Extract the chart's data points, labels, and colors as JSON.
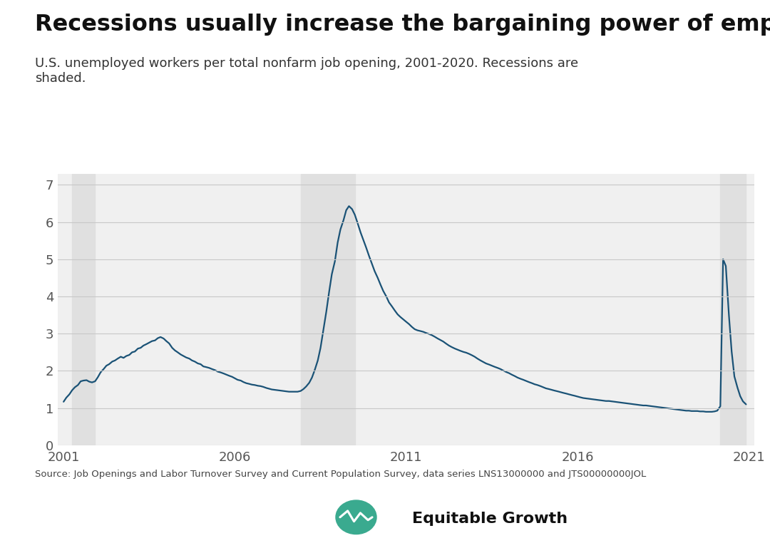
{
  "title": "Recessions usually increase the bargaining power of employers",
  "subtitle": "U.S. unemployed workers per total nonfarm job opening, 2001-2020. Recessions are\nshaded.",
  "source_text": "Source: Job Openings and Labor Turnover Survey and Current Population Survey, data series LNS13000000 and JTS00000000JOL",
  "background_color": "#ffffff",
  "plot_bg_color": "#f0f0f0",
  "line_color": "#1a5276",
  "recession_color": "#e0e0e0",
  "recessions": [
    {
      "start": 2001.25,
      "end": 2001.92
    },
    {
      "start": 2007.92,
      "end": 2009.5
    },
    {
      "start": 2020.17,
      "end": 2020.92
    }
  ],
  "yticks": [
    0,
    1,
    2,
    3,
    4,
    5,
    6,
    7
  ],
  "xticks": [
    2001,
    2006,
    2011,
    2016,
    2021
  ],
  "ylim": [
    0,
    7.3
  ],
  "xlim": [
    2000.83,
    2021.17
  ],
  "title_fontsize": 23,
  "subtitle_fontsize": 13,
  "tick_fontsize": 13,
  "data": {
    "dates": [
      2001.0,
      2001.08,
      2001.17,
      2001.25,
      2001.33,
      2001.42,
      2001.5,
      2001.58,
      2001.67,
      2001.75,
      2001.83,
      2001.92,
      2002.0,
      2002.08,
      2002.17,
      2002.25,
      2002.33,
      2002.42,
      2002.5,
      2002.58,
      2002.67,
      2002.75,
      2002.83,
      2002.92,
      2003.0,
      2003.08,
      2003.17,
      2003.25,
      2003.33,
      2003.42,
      2003.5,
      2003.58,
      2003.67,
      2003.75,
      2003.83,
      2003.92,
      2004.0,
      2004.08,
      2004.17,
      2004.25,
      2004.33,
      2004.42,
      2004.5,
      2004.58,
      2004.67,
      2004.75,
      2004.83,
      2004.92,
      2005.0,
      2005.08,
      2005.17,
      2005.25,
      2005.33,
      2005.42,
      2005.5,
      2005.58,
      2005.67,
      2005.75,
      2005.83,
      2005.92,
      2006.0,
      2006.08,
      2006.17,
      2006.25,
      2006.33,
      2006.42,
      2006.5,
      2006.58,
      2006.67,
      2006.75,
      2006.83,
      2006.92,
      2007.0,
      2007.08,
      2007.17,
      2007.25,
      2007.33,
      2007.42,
      2007.5,
      2007.58,
      2007.67,
      2007.75,
      2007.83,
      2007.92,
      2008.0,
      2008.08,
      2008.17,
      2008.25,
      2008.33,
      2008.42,
      2008.5,
      2008.58,
      2008.67,
      2008.75,
      2008.83,
      2008.92,
      2009.0,
      2009.08,
      2009.17,
      2009.25,
      2009.33,
      2009.42,
      2009.5,
      2009.58,
      2009.67,
      2009.75,
      2009.83,
      2009.92,
      2010.0,
      2010.08,
      2010.17,
      2010.25,
      2010.33,
      2010.42,
      2010.5,
      2010.58,
      2010.67,
      2010.75,
      2010.83,
      2010.92,
      2011.0,
      2011.08,
      2011.17,
      2011.25,
      2011.33,
      2011.42,
      2011.5,
      2011.58,
      2011.67,
      2011.75,
      2011.83,
      2011.92,
      2012.0,
      2012.08,
      2012.17,
      2012.25,
      2012.33,
      2012.42,
      2012.5,
      2012.58,
      2012.67,
      2012.75,
      2012.83,
      2012.92,
      2013.0,
      2013.08,
      2013.17,
      2013.25,
      2013.33,
      2013.42,
      2013.5,
      2013.58,
      2013.67,
      2013.75,
      2013.83,
      2013.92,
      2014.0,
      2014.08,
      2014.17,
      2014.25,
      2014.33,
      2014.42,
      2014.5,
      2014.58,
      2014.67,
      2014.75,
      2014.83,
      2014.92,
      2015.0,
      2015.08,
      2015.17,
      2015.25,
      2015.33,
      2015.42,
      2015.5,
      2015.58,
      2015.67,
      2015.75,
      2015.83,
      2015.92,
      2016.0,
      2016.08,
      2016.17,
      2016.25,
      2016.33,
      2016.42,
      2016.5,
      2016.58,
      2016.67,
      2016.75,
      2016.83,
      2016.92,
      2017.0,
      2017.08,
      2017.17,
      2017.25,
      2017.33,
      2017.42,
      2017.5,
      2017.58,
      2017.67,
      2017.75,
      2017.83,
      2017.92,
      2018.0,
      2018.08,
      2018.17,
      2018.25,
      2018.33,
      2018.42,
      2018.5,
      2018.58,
      2018.67,
      2018.75,
      2018.83,
      2018.92,
      2019.0,
      2019.08,
      2019.17,
      2019.25,
      2019.33,
      2019.42,
      2019.5,
      2019.58,
      2019.67,
      2019.75,
      2019.83,
      2019.92,
      2020.0,
      2020.08,
      2020.17,
      2020.25,
      2020.33,
      2020.42,
      2020.5,
      2020.58,
      2020.67,
      2020.75,
      2020.83,
      2020.92
    ],
    "values": [
      1.17,
      1.28,
      1.37,
      1.48,
      1.56,
      1.62,
      1.72,
      1.74,
      1.75,
      1.71,
      1.69,
      1.72,
      1.83,
      1.96,
      2.05,
      2.14,
      2.18,
      2.25,
      2.28,
      2.33,
      2.38,
      2.35,
      2.4,
      2.43,
      2.5,
      2.52,
      2.6,
      2.62,
      2.68,
      2.72,
      2.76,
      2.8,
      2.82,
      2.88,
      2.91,
      2.87,
      2.8,
      2.74,
      2.62,
      2.55,
      2.5,
      2.44,
      2.4,
      2.36,
      2.33,
      2.28,
      2.25,
      2.2,
      2.18,
      2.12,
      2.1,
      2.08,
      2.05,
      2.02,
      1.98,
      1.96,
      1.93,
      1.9,
      1.87,
      1.84,
      1.8,
      1.76,
      1.74,
      1.7,
      1.67,
      1.65,
      1.63,
      1.62,
      1.6,
      1.59,
      1.57,
      1.54,
      1.52,
      1.5,
      1.49,
      1.48,
      1.47,
      1.46,
      1.45,
      1.44,
      1.44,
      1.44,
      1.44,
      1.46,
      1.51,
      1.58,
      1.68,
      1.82,
      2.02,
      2.28,
      2.62,
      3.08,
      3.6,
      4.12,
      4.6,
      4.95,
      5.45,
      5.8,
      6.05,
      6.32,
      6.43,
      6.35,
      6.2,
      5.98,
      5.72,
      5.52,
      5.32,
      5.08,
      4.88,
      4.68,
      4.5,
      4.32,
      4.15,
      4.0,
      3.84,
      3.74,
      3.62,
      3.52,
      3.45,
      3.38,
      3.32,
      3.26,
      3.18,
      3.12,
      3.09,
      3.07,
      3.05,
      3.02,
      2.99,
      2.96,
      2.92,
      2.87,
      2.83,
      2.79,
      2.73,
      2.68,
      2.64,
      2.6,
      2.57,
      2.54,
      2.51,
      2.49,
      2.46,
      2.42,
      2.38,
      2.33,
      2.28,
      2.24,
      2.2,
      2.17,
      2.14,
      2.11,
      2.08,
      2.05,
      2.01,
      1.97,
      1.94,
      1.9,
      1.86,
      1.82,
      1.79,
      1.76,
      1.73,
      1.7,
      1.67,
      1.64,
      1.62,
      1.59,
      1.56,
      1.53,
      1.51,
      1.49,
      1.47,
      1.45,
      1.43,
      1.41,
      1.39,
      1.37,
      1.35,
      1.33,
      1.31,
      1.29,
      1.27,
      1.26,
      1.25,
      1.24,
      1.23,
      1.22,
      1.21,
      1.2,
      1.19,
      1.19,
      1.18,
      1.17,
      1.16,
      1.15,
      1.14,
      1.13,
      1.12,
      1.11,
      1.1,
      1.09,
      1.08,
      1.07,
      1.07,
      1.06,
      1.05,
      1.04,
      1.03,
      1.02,
      1.01,
      1.0,
      0.99,
      0.98,
      0.97,
      0.96,
      0.95,
      0.94,
      0.93,
      0.93,
      0.92,
      0.92,
      0.92,
      0.91,
      0.91,
      0.9,
      0.9,
      0.9,
      0.91,
      0.93,
      1.05,
      5.0,
      4.82,
      3.5,
      2.52,
      1.85,
      1.55,
      1.32,
      1.18,
      1.1
    ]
  }
}
